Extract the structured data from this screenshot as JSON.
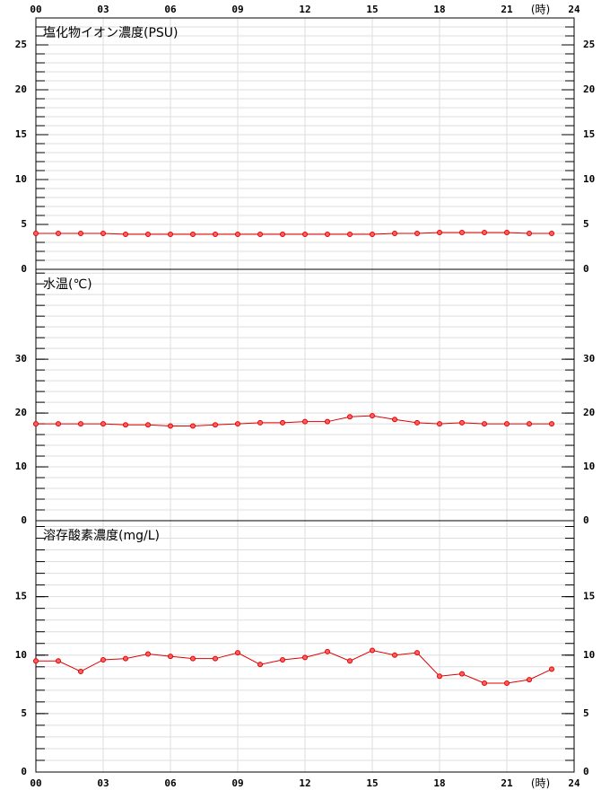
{
  "chart_data": [
    {
      "type": "line",
      "title": "塩化物イオン濃度(PSU)",
      "x_label": "(時)",
      "xtick_side": "top",
      "x": [
        0,
        1,
        2,
        3,
        4,
        5,
        6,
        7,
        8,
        9,
        10,
        11,
        12,
        13,
        14,
        15,
        16,
        17,
        18,
        19,
        20,
        21,
        22,
        23
      ],
      "series": [
        {
          "color": "#e00000",
          "values": [
            4.0,
            4.0,
            4.0,
            4.0,
            3.9,
            3.9,
            3.9,
            3.9,
            3.9,
            3.9,
            3.9,
            3.9,
            3.9,
            3.9,
            3.9,
            3.9,
            4.0,
            4.0,
            4.1,
            4.1,
            4.1,
            4.1,
            4.0,
            4.0
          ]
        }
      ],
      "xlim": [
        0,
        24
      ],
      "xticks": [
        {
          "value": 0,
          "label": "00"
        },
        {
          "value": 3,
          "label": "03"
        },
        {
          "value": 6,
          "label": "06"
        },
        {
          "value": 9,
          "label": "09"
        },
        12,
        15,
        18,
        21,
        24
      ],
      "ylim": [
        0,
        28
      ],
      "yticks": [
        0,
        5,
        10,
        15,
        20,
        25
      ],
      "minor_grid_step": 1,
      "grid": true
    },
    {
      "type": "line",
      "title": "水温(℃)",
      "xtick_side": "none",
      "x": [
        0,
        1,
        2,
        3,
        4,
        5,
        6,
        7,
        8,
        9,
        10,
        11,
        12,
        13,
        14,
        15,
        16,
        17,
        18,
        19,
        20,
        21,
        22,
        23
      ],
      "series": [
        {
          "color": "#e00000",
          "values": [
            18.0,
            18.0,
            18.0,
            18.0,
            17.8,
            17.8,
            17.6,
            17.6,
            17.8,
            18.0,
            18.2,
            18.2,
            18.4,
            18.4,
            19.3,
            19.5,
            18.8,
            18.2,
            18.0,
            18.2,
            18.0,
            18.0,
            18.0,
            18.0
          ]
        }
      ],
      "xlim": [
        0,
        24
      ],
      "xticks": [
        {
          "value": 0,
          "label": "00"
        },
        {
          "value": 3,
          "label": "03"
        },
        {
          "value": 6,
          "label": "06"
        },
        {
          "value": 9,
          "label": "09"
        },
        12,
        15,
        18,
        21,
        24
      ],
      "ylim": [
        0,
        46.7
      ],
      "yticks": [
        0,
        10,
        20,
        30
      ],
      "minor_grid_step": 2,
      "grid": true
    },
    {
      "type": "line",
      "title": "溶存酸素濃度(mg/L)",
      "x_label": "(時)",
      "xtick_side": "bottom",
      "x": [
        0,
        1,
        2,
        3,
        4,
        5,
        6,
        7,
        8,
        9,
        10,
        11,
        12,
        13,
        14,
        15,
        16,
        17,
        18,
        19,
        20,
        21,
        22,
        23
      ],
      "series": [
        {
          "color": "#e00000",
          "values": [
            9.5,
            9.5,
            8.6,
            9.6,
            9.7,
            10.1,
            9.9,
            9.7,
            9.7,
            10.2,
            9.2,
            9.6,
            9.8,
            10.3,
            9.5,
            10.4,
            10.0,
            10.2,
            8.2,
            8.4,
            7.6,
            7.6,
            7.9,
            8.8
          ]
        }
      ],
      "xlim": [
        0,
        24
      ],
      "xticks": [
        {
          "value": 0,
          "label": "00"
        },
        {
          "value": 3,
          "label": "03"
        },
        {
          "value": 6,
          "label": "06"
        },
        {
          "value": 9,
          "label": "09"
        },
        12,
        15,
        18,
        21,
        24
      ],
      "ylim": [
        0,
        21.5
      ],
      "yticks": [
        0,
        5,
        10,
        15
      ],
      "minor_grid_step": 1,
      "grid": true
    }
  ]
}
